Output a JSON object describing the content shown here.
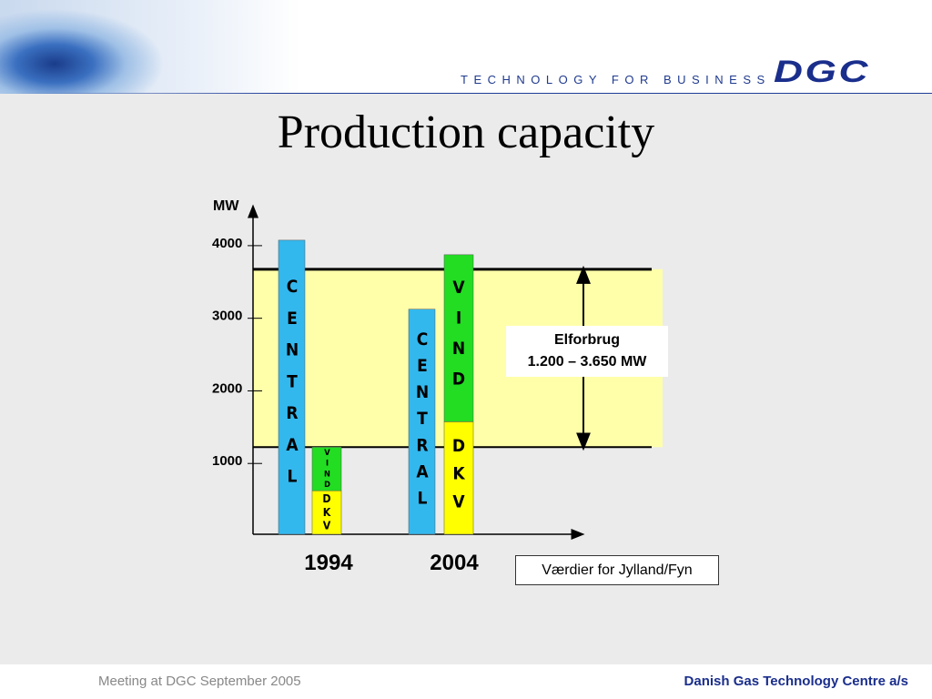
{
  "header": {
    "tagline": "TECHNOLOGY FOR BUSINESS",
    "logo": "DGC"
  },
  "chart_data": {
    "type": "bar",
    "title": "Production capacity",
    "y_label": "MW",
    "categories": [
      "1994",
      "2004"
    ],
    "series": [
      {
        "name": "CENTRAL",
        "color": "#33b8ee",
        "stack": "central",
        "values": [
          4050,
          3100
        ]
      },
      {
        "name": "DKV",
        "color": "#ffff00",
        "stack": "local",
        "values": [
          600,
          1550
        ]
      },
      {
        "name": "VIND",
        "color": "#22dd22",
        "stack": "local",
        "values": [
          600,
          2300
        ]
      }
    ],
    "ylim": [
      0,
      4450
    ],
    "yticks": [
      1000,
      2000,
      3000,
      4000
    ],
    "band": {
      "label": "Elforbrug",
      "range_label": "1.200 – 3.650 MW",
      "low": 1200,
      "high": 3650,
      "color": "#ffffaa"
    },
    "note": "Værdier for Jylland/Fyn"
  },
  "footer": {
    "left": "Meeting at DGC September 2005",
    "right": "Danish Gas Technology Centre a/s"
  }
}
